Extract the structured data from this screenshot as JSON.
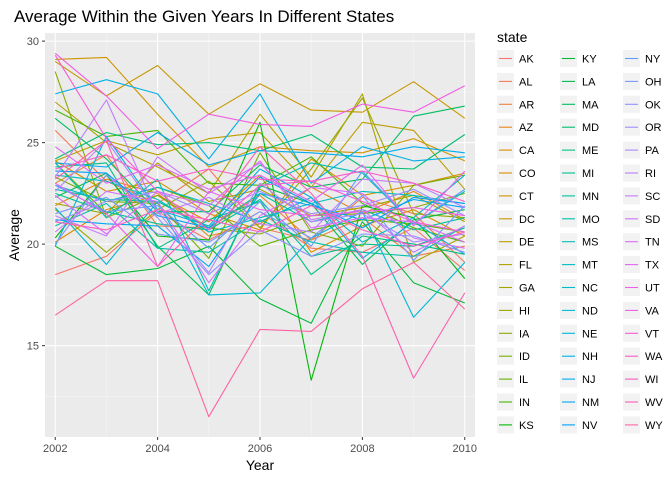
{
  "chart_data": {
    "type": "line",
    "title": "Average Within the Given Years In Different States",
    "xlabel": "Year",
    "ylabel": "Average",
    "xlim": [
      2001.8,
      2010.2
    ],
    "ylim": [
      10.5,
      30.4
    ],
    "x_ticks": [
      2002,
      2004,
      2006,
      2008,
      2010
    ],
    "y_ticks": [
      15,
      20,
      25,
      30
    ],
    "grid": true,
    "background": "#EBEBEB",
    "legend_title": "state",
    "legend_position": "right",
    "x": [
      2002,
      2003,
      2004,
      2005,
      2006,
      2007,
      2008,
      2009,
      2010
    ],
    "series": [
      {
        "name": "AK",
        "color": "#F8766D",
        "values": [
          18.5,
          19.4,
          21.6,
          20.2,
          21.6,
          19.8,
          19.6,
          20.8,
          18.7
        ]
      },
      {
        "name": "AL",
        "color": "#F37B59",
        "values": [
          25.6,
          23.1,
          22.0,
          23.7,
          20.8,
          20.2,
          22.3,
          21.5,
          19.1
        ]
      },
      {
        "name": "AR",
        "color": "#ED8141",
        "values": [
          23.0,
          24.4,
          20.9,
          20.8,
          22.4,
          20.2,
          21.3,
          19.4,
          19.9
        ]
      },
      {
        "name": "AZ",
        "color": "#E7861B",
        "values": [
          21.9,
          23.2,
          22.5,
          20.4,
          21.0,
          22.8,
          21.5,
          22.6,
          21.2
        ]
      },
      {
        "name": "CA",
        "color": "#E08B00",
        "values": [
          20.1,
          21.7,
          22.4,
          21.1,
          23.4,
          19.6,
          20.9,
          21.7,
          20.4
        ]
      },
      {
        "name": "CO",
        "color": "#D89000",
        "values": [
          24.1,
          22.6,
          23.1,
          21.5,
          20.7,
          24.2,
          22.4,
          22.9,
          23.5
        ]
      },
      {
        "name": "CT",
        "color": "#CF9400",
        "values": [
          29.1,
          29.2,
          26.4,
          23.8,
          24.8,
          24.6,
          24.5,
          25.2,
          24.1
        ]
      },
      {
        "name": "DC",
        "color": "#C69900",
        "values": [
          29.0,
          27.3,
          28.8,
          26.4,
          27.9,
          26.6,
          26.5,
          28.0,
          26.2
        ]
      },
      {
        "name": "DE",
        "color": "#BB9D00",
        "values": [
          24.1,
          25.1,
          24.4,
          25.2,
          25.5,
          22.8,
          26.0,
          25.6,
          22.7
        ]
      },
      {
        "name": "FL",
        "color": "#B0A100",
        "values": [
          27.0,
          25.0,
          23.8,
          22.5,
          26.4,
          23.3,
          27.4,
          19.1,
          20.4
        ]
      },
      {
        "name": "GA",
        "color": "#A3A500",
        "values": [
          22.0,
          21.5,
          24.0,
          22.1,
          22.7,
          21.4,
          21.8,
          22.4,
          21.1
        ]
      },
      {
        "name": "HI",
        "color": "#97A900",
        "values": [
          21.7,
          19.6,
          21.7,
          23.1,
          20.8,
          23.7,
          27.2,
          21.5,
          21.3
        ]
      },
      {
        "name": "IA",
        "color": "#88AC00",
        "values": [
          28.5,
          21.3,
          22.4,
          20.8,
          20.5,
          21.4,
          21.5,
          21.8,
          22.5
        ]
      },
      {
        "name": "ID",
        "color": "#77AF00",
        "values": [
          23.3,
          22.1,
          22.0,
          19.3,
          24.5,
          20.6,
          19.9,
          22.9,
          23.4
        ]
      },
      {
        "name": "IL",
        "color": "#63B200",
        "values": [
          24.0,
          21.5,
          22.8,
          21.9,
          19.9,
          20.7,
          21.2,
          21.0,
          20.6
        ]
      },
      {
        "name": "IN",
        "color": "#47B500",
        "values": [
          26.6,
          25.3,
          25.6,
          23.0,
          22.9,
          24.3,
          22.0,
          20.8,
          20.1
        ]
      },
      {
        "name": "KS",
        "color": "#00B70C",
        "values": [
          20.3,
          23.4,
          20.4,
          20.2,
          26.0,
          13.3,
          21.9,
          21.3,
          18.3
        ]
      },
      {
        "name": "KY",
        "color": "#00BA38",
        "values": [
          19.9,
          18.5,
          18.8,
          19.9,
          17.3,
          16.1,
          21.1,
          18.1,
          17.1
        ]
      },
      {
        "name": "LA",
        "color": "#00BC4F",
        "values": [
          22.3,
          23.5,
          19.9,
          17.5,
          22.9,
          22.0,
          19.0,
          21.2,
          21.7
        ]
      },
      {
        "name": "MA",
        "color": "#00BE61",
        "values": [
          26.2,
          24.2,
          21.6,
          21.6,
          23.9,
          22.8,
          23.2,
          26.3,
          26.8
        ]
      },
      {
        "name": "MD",
        "color": "#00BF72",
        "values": [
          24.2,
          25.5,
          24.9,
          25.0,
          24.6,
          25.4,
          23.8,
          23.7,
          25.4
        ]
      },
      {
        "name": "ME",
        "color": "#00C081",
        "values": [
          23.8,
          24.0,
          19.8,
          21.2,
          22.1,
          18.5,
          20.4,
          20.0,
          19.5
        ]
      },
      {
        "name": "MI",
        "color": "#00C18F",
        "values": [
          22.5,
          21.6,
          21.0,
          20.7,
          22.2,
          19.4,
          20.0,
          19.9,
          20.8
        ]
      },
      {
        "name": "MN",
        "color": "#00C19C",
        "values": [
          22.7,
          22.2,
          22.1,
          20.8,
          22.5,
          21.1,
          21.7,
          20.7,
          21.3
        ]
      },
      {
        "name": "MO",
        "color": "#00C0A8",
        "values": [
          20.9,
          22.0,
          19.8,
          19.6,
          21.2,
          20.1,
          19.6,
          19.4,
          20.9
        ]
      },
      {
        "name": "MS",
        "color": "#00BFB4",
        "values": [
          24.0,
          21.3,
          23.2,
          17.7,
          22.8,
          24.0,
          23.5,
          21.0,
          22.6
        ]
      },
      {
        "name": "MT",
        "color": "#00BDBF",
        "values": [
          23.4,
          23.1,
          22.2,
          20.6,
          21.3,
          22.0,
          22.6,
          22.4,
          22.0
        ]
      },
      {
        "name": "NC",
        "color": "#00BBC9",
        "values": [
          22.9,
          22.1,
          22.8,
          22.0,
          21.1,
          22.3,
          20.1,
          21.3,
          23.4
        ]
      },
      {
        "name": "ND",
        "color": "#00B8D3",
        "values": [
          21.8,
          19.0,
          22.1,
          17.5,
          17.6,
          20.3,
          21.6,
          16.4,
          19.1
        ]
      },
      {
        "name": "NE",
        "color": "#00B4DC",
        "values": [
          19.9,
          25.3,
          21.7,
          20.9,
          23.7,
          22.3,
          19.3,
          21.1,
          19.5
        ]
      },
      {
        "name": "NH",
        "color": "#00B0E5",
        "values": [
          27.4,
          28.1,
          27.4,
          24.2,
          27.4,
          23.0,
          24.8,
          24.1,
          24.3
        ]
      },
      {
        "name": "NJ",
        "color": "#00ABED",
        "values": [
          24.0,
          23.8,
          25.5,
          23.9,
          24.6,
          24.5,
          24.3,
          24.8,
          24.5
        ]
      },
      {
        "name": "NM",
        "color": "#00A6F4",
        "values": [
          21.2,
          21.0,
          20.9,
          18.9,
          22.5,
          21.9,
          21.2,
          22.2,
          21.8
        ]
      },
      {
        "name": "NV",
        "color": "#00A0FA",
        "values": [
          23.6,
          23.5,
          21.4,
          20.8,
          23.3,
          22.0,
          20.8,
          22.3,
          22.0
        ]
      },
      {
        "name": "NY",
        "color": "#619CFF",
        "values": [
          22.9,
          21.6,
          21.9,
          19.8,
          22.1,
          19.9,
          23.6,
          21.0,
          22.7
        ]
      },
      {
        "name": "OH",
        "color": "#7B97FF",
        "values": [
          21.5,
          22.3,
          20.5,
          20.1,
          21.6,
          20.3,
          22.4,
          19.2,
          21.9
        ]
      },
      {
        "name": "OK",
        "color": "#8F91FF",
        "values": [
          20.0,
          23.4,
          21.3,
          18.5,
          20.7,
          19.4,
          20.5,
          20.4,
          19.6
        ]
      },
      {
        "name": "OR",
        "color": "#A08BFF",
        "values": [
          21.1,
          22.1,
          22.6,
          21.5,
          22.6,
          21.5,
          21.9,
          22.7,
          21.4
        ]
      },
      {
        "name": "PA",
        "color": "#AF85FF",
        "values": [
          22.6,
          25.1,
          21.6,
          18.6,
          23.0,
          21.1,
          21.5,
          20.1,
          20.5
        ]
      },
      {
        "name": "RI",
        "color": "#BC7EFF",
        "values": [
          23.3,
          27.1,
          21.5,
          22.3,
          21.0,
          20.6,
          23.2,
          23.0,
          21.8
        ]
      },
      {
        "name": "SC",
        "color": "#C878FF",
        "values": [
          21.4,
          20.4,
          24.3,
          22.5,
          24.0,
          21.2,
          21.7,
          19.6,
          20.9
        ]
      },
      {
        "name": "SD",
        "color": "#D272FF",
        "values": [
          20.6,
          22.6,
          22.1,
          18.1,
          21.4,
          22.8,
          22.5,
          20.3,
          19.8
        ]
      },
      {
        "name": "TN",
        "color": "#DC6CFC",
        "values": [
          22.4,
          20.5,
          22.6,
          21.9,
          24.1,
          20.8,
          21.3,
          21.1,
          20.1
        ]
      },
      {
        "name": "TX",
        "color": "#E466F4",
        "values": [
          24.8,
          23.0,
          23.9,
          22.7,
          23.4,
          22.1,
          23.9,
          20.9,
          23.6
        ]
      },
      {
        "name": "UT",
        "color": "#EB61EC",
        "values": [
          23.0,
          21.5,
          18.9,
          22.6,
          21.7,
          21.4,
          21.6,
          21.8,
          21.4
        ]
      },
      {
        "name": "VA",
        "color": "#F15DE2",
        "values": [
          29.4,
          27.3,
          24.7,
          26.4,
          25.9,
          25.8,
          26.9,
          26.5,
          27.8
        ]
      },
      {
        "name": "VT",
        "color": "#F65BD7",
        "values": [
          29.3,
          25.2,
          22.6,
          20.7,
          22.9,
          23.1,
          22.1,
          21.1,
          20.6
        ]
      },
      {
        "name": "WA",
        "color": "#FA5BCB",
        "values": [
          23.7,
          24.4,
          23.1,
          23.7,
          23.2,
          23.1,
          23.6,
          23.0,
          22.1
        ]
      },
      {
        "name": "WI",
        "color": "#FC5CBE",
        "values": [
          21.1,
          20.7,
          21.7,
          21.2,
          20.6,
          21.9,
          20.7,
          19.9,
          20.6
        ]
      },
      {
        "name": "WV",
        "color": "#FD5FB0",
        "values": [
          23.2,
          25.1,
          18.9,
          21.4,
          24.8,
          22.5,
          19.4,
          13.4,
          17.6
        ]
      },
      {
        "name": "WY",
        "color": "#FE63A2",
        "values": [
          16.5,
          18.2,
          18.2,
          11.5,
          15.8,
          15.7,
          17.8,
          19.1,
          16.8
        ]
      }
    ]
  }
}
